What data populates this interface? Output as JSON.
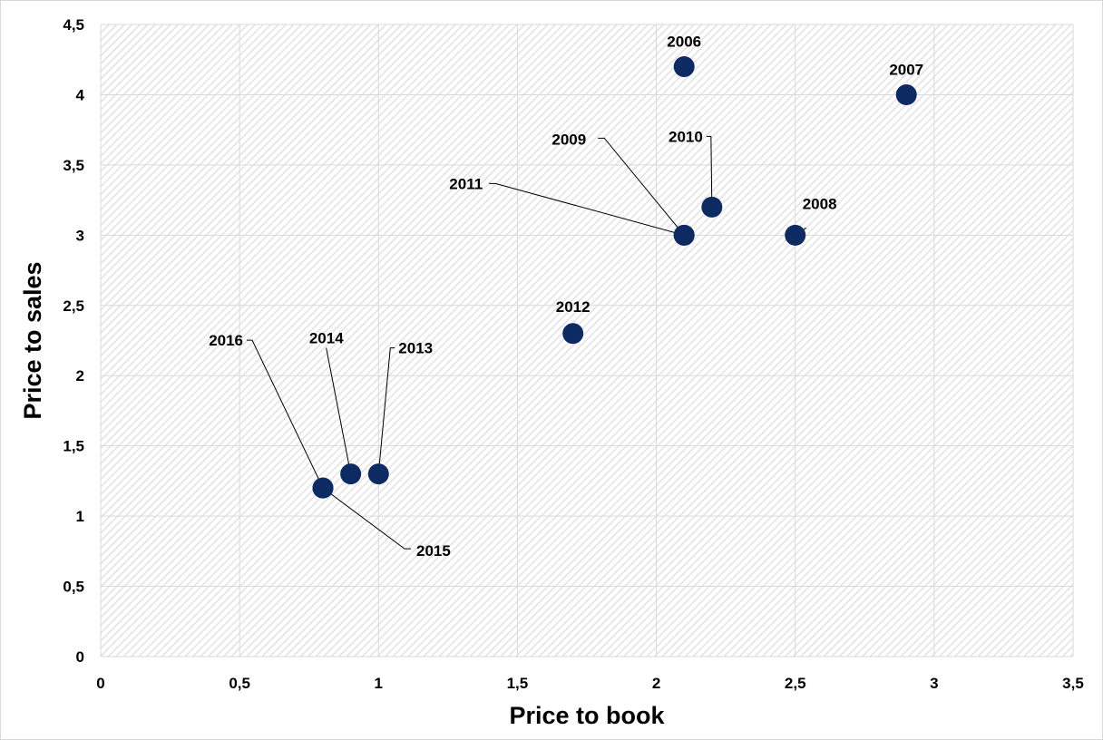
{
  "chart_data": {
    "type": "scatter",
    "xlabel": "Price to book",
    "ylabel": "Price to sales",
    "xlim": [
      0,
      3.5
    ],
    "ylim": [
      0,
      4.5
    ],
    "x_ticks": [
      "0",
      "0,5",
      "1",
      "1,5",
      "2",
      "2,5",
      "3",
      "3,5"
    ],
    "y_ticks": [
      "0",
      "0,5",
      "1",
      "1,5",
      "2",
      "2,5",
      "3",
      "3,5",
      "4",
      "4,5"
    ],
    "grid": true,
    "legend": "none",
    "marker_color": "#0d2a63",
    "points": [
      {
        "label": "2006",
        "x": 2.1,
        "y": 4.2
      },
      {
        "label": "2007",
        "x": 2.9,
        "y": 4.0
      },
      {
        "label": "2008",
        "x": 2.5,
        "y": 3.0
      },
      {
        "label": "2009",
        "x": 2.1,
        "y": 3.0
      },
      {
        "label": "2010",
        "x": 2.2,
        "y": 3.2
      },
      {
        "label": "2011",
        "x": 2.1,
        "y": 3.0
      },
      {
        "label": "2012",
        "x": 1.7,
        "y": 2.3
      },
      {
        "label": "2013",
        "x": 1.0,
        "y": 1.3
      },
      {
        "label": "2014",
        "x": 0.9,
        "y": 1.3
      },
      {
        "label": "2015",
        "x": 0.8,
        "y": 1.2
      },
      {
        "label": "2016",
        "x": 0.8,
        "y": 1.2
      }
    ]
  }
}
